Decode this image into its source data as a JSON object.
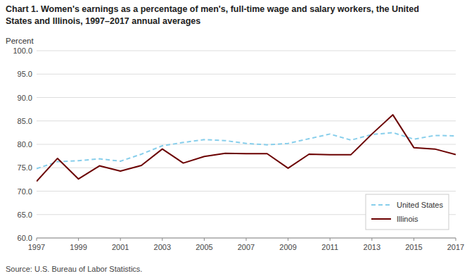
{
  "chart_data": {
    "type": "line",
    "title": "Chart 1. Women's earnings as a percentage of men's, full-time wage and salary workers, the United",
    "subtitle": "States and Illinois, 1997–2017  annual averages",
    "y_label": "Percent",
    "annotations": [
      "Source:  U.S. Bureau of Labor Statistics."
    ],
    "x": [
      1997,
      1998,
      1999,
      2000,
      2001,
      2002,
      2003,
      2004,
      2005,
      2006,
      2007,
      2008,
      2009,
      2010,
      2011,
      2012,
      2013,
      2014,
      2015,
      2016,
      2017
    ],
    "series": [
      {
        "name": "United States",
        "color": "#87CEEB",
        "line_style": "dashed",
        "values": [
          74.8,
          76.3,
          76.5,
          76.9,
          76.4,
          77.9,
          79.7,
          80.4,
          81.0,
          80.8,
          80.2,
          79.9,
          80.2,
          81.2,
          82.2,
          80.9,
          82.1,
          82.5,
          81.1,
          81.9,
          81.8
        ]
      },
      {
        "name": "Illinois",
        "color": "#6B0000",
        "line_style": "solid",
        "values": [
          72.1,
          77.0,
          72.6,
          75.4,
          74.3,
          75.5,
          79.0,
          76.0,
          77.4,
          78.1,
          78.0,
          78.0,
          74.9,
          77.9,
          77.8,
          77.8,
          82.2,
          86.3,
          79.3,
          79.0,
          77.8
        ]
      }
    ],
    "xlim": [
      1997,
      2017
    ],
    "xticks": [
      1997,
      1999,
      2001,
      2003,
      2005,
      2007,
      2009,
      2011,
      2013,
      2015,
      2017
    ],
    "ylim": [
      60.0,
      100.0
    ],
    "yticks": [
      {
        "value": 60.0,
        "label": "60.0"
      },
      {
        "value": 65.0,
        "label": "65.0"
      },
      {
        "value": 70.0,
        "label": "70.0"
      },
      {
        "value": 75.0,
        "label": "75.0"
      },
      {
        "value": 80.0,
        "label": "80.0"
      },
      {
        "value": 85.0,
        "label": "85.0"
      },
      {
        "value": 90.0,
        "label": "90.0"
      },
      {
        "value": 95.0,
        "label": "95.0"
      },
      {
        "value": 100.0,
        "label": "100.0"
      }
    ],
    "grid": true,
    "legend": "lower right"
  }
}
